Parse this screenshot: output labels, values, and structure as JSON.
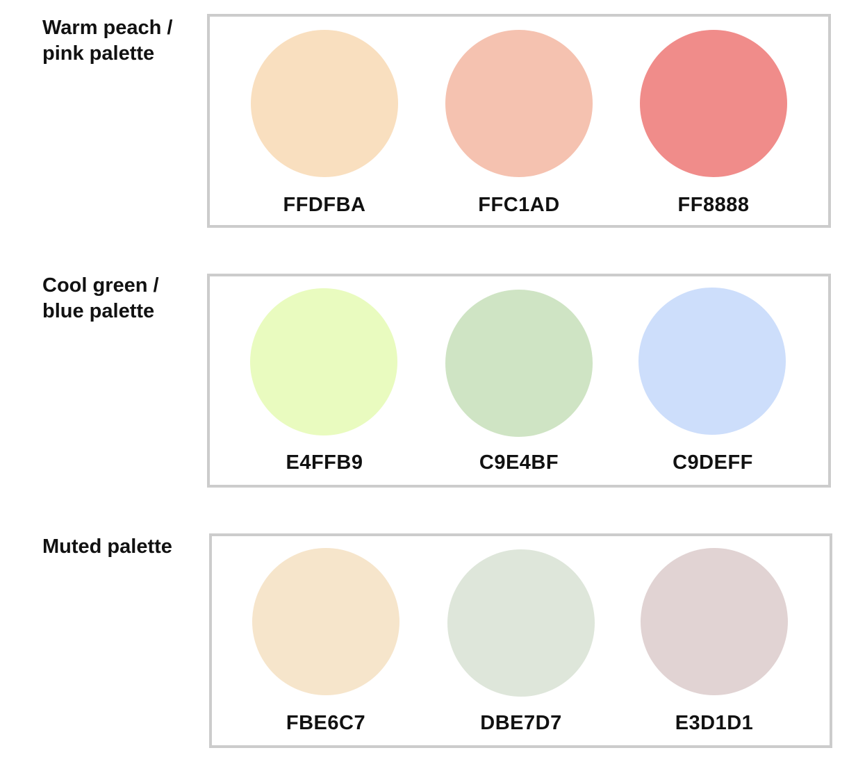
{
  "palettes": [
    {
      "label_lines": [
        "Warm peach /",
        "pink palette"
      ],
      "swatches": [
        {
          "hex": "FFDFBA",
          "color": "#F9DFBF"
        },
        {
          "hex": "FFC1AD",
          "color": "#F5C2B0"
        },
        {
          "hex": "FF8888",
          "color": "#F08C8A"
        }
      ]
    },
    {
      "label_lines": [
        "Cool green /",
        "blue palette"
      ],
      "swatches": [
        {
          "hex": "E4FFB9",
          "color": "#E9FBBF"
        },
        {
          "hex": "C9E4BF",
          "color": "#CFE4C4"
        },
        {
          "hex": "C9DEFF",
          "color": "#CDDEFB"
        }
      ]
    },
    {
      "label_lines": [
        "Muted palette"
      ],
      "swatches": [
        {
          "hex": "FBE6C7",
          "color": "#F6E5CB"
        },
        {
          "hex": "DBE7D7",
          "color": "#DEE6DA"
        },
        {
          "hex": "E3D1D1",
          "color": "#E1D3D3"
        }
      ]
    }
  ]
}
